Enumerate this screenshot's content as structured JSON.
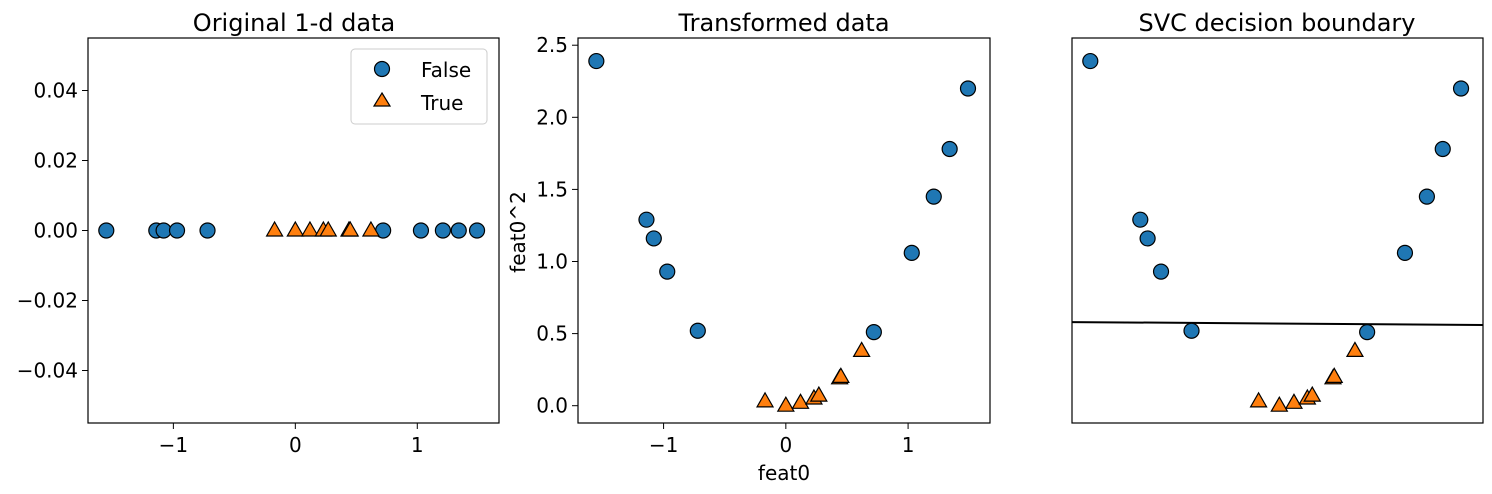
{
  "colors": {
    "false": "#1f77b4",
    "true": "#ff7f0e",
    "edge": "#000000",
    "line": "#000000"
  },
  "chart_data": [
    {
      "type": "scatter",
      "title": "Original 1-d data",
      "xlabel": "",
      "ylabel": "",
      "xlim": [
        -1.7,
        1.67
      ],
      "ylim": [
        -0.055,
        0.055
      ],
      "xticks": [
        -1,
        0,
        1
      ],
      "xtick_labels": [
        "−1",
        "0",
        "1"
      ],
      "yticks": [
        0.04,
        0.02,
        0.0,
        -0.02,
        -0.04
      ],
      "ytick_labels": [
        "0.04",
        "0.02",
        "0.00",
        "−0.02",
        "−0.04"
      ],
      "legend": {
        "position": "top-right",
        "entries": [
          {
            "label": "False",
            "marker": "circle"
          },
          {
            "label": "True",
            "marker": "triangle"
          }
        ]
      },
      "series": [
        {
          "name": "False",
          "marker": "circle",
          "x": [
            -1.55,
            -1.14,
            -1.08,
            -0.97,
            -0.72,
            0.72,
            1.03,
            1.21,
            1.34,
            1.49
          ],
          "y": [
            0,
            0,
            0,
            0,
            0,
            0,
            0,
            0,
            0,
            0
          ]
        },
        {
          "name": "True",
          "marker": "triangle",
          "x": [
            -0.17,
            0.0,
            0.12,
            0.23,
            0.27,
            0.44,
            0.45,
            0.62
          ],
          "y": [
            0,
            0,
            0,
            0,
            0,
            0,
            0,
            0
          ]
        }
      ]
    },
    {
      "type": "scatter",
      "title": "Transformed data",
      "xlabel": "feat0",
      "ylabel": "feat0^2",
      "xlim": [
        -1.7,
        1.67
      ],
      "ylim": [
        -0.12,
        2.55
      ],
      "xticks": [
        -1,
        0,
        1
      ],
      "xtick_labels": [
        "−1",
        "0",
        "1"
      ],
      "yticks": [
        0.0,
        0.5,
        1.0,
        1.5,
        2.0,
        2.5
      ],
      "ytick_labels": [
        "0.0",
        "0.5",
        "1.0",
        "1.5",
        "2.0",
        "2.5"
      ],
      "series": [
        {
          "marker": "circle",
          "x": [
            -1.55,
            -1.14,
            -1.08,
            -0.97,
            -0.72,
            0.72,
            1.03,
            1.21,
            1.34,
            1.49
          ],
          "y": [
            2.39,
            1.29,
            1.16,
            0.93,
            0.52,
            0.51,
            1.06,
            1.45,
            1.78,
            2.2
          ]
        },
        {
          "marker": "triangle",
          "x": [
            -0.17,
            0.0,
            0.12,
            0.23,
            0.27,
            0.44,
            0.45,
            0.62
          ],
          "y": [
            0.03,
            0.0,
            0.02,
            0.05,
            0.07,
            0.19,
            0.2,
            0.38
          ]
        }
      ]
    },
    {
      "type": "scatter",
      "title": "SVC decision boundary",
      "xlabel": "",
      "ylabel": "",
      "ticks_hidden": true,
      "xlim": [
        -1.7,
        1.67
      ],
      "ylim": [
        -0.12,
        2.55
      ],
      "decision_boundary": {
        "x": [
          -1.7,
          1.67
        ],
        "y": [
          0.58,
          0.56
        ]
      },
      "series": [
        {
          "marker": "circle",
          "x": [
            -1.55,
            -1.14,
            -1.08,
            -0.97,
            -0.72,
            0.72,
            1.03,
            1.21,
            1.34,
            1.49
          ],
          "y": [
            2.39,
            1.29,
            1.16,
            0.93,
            0.52,
            0.51,
            1.06,
            1.45,
            1.78,
            2.2
          ]
        },
        {
          "marker": "triangle",
          "x": [
            -0.17,
            0.0,
            0.12,
            0.23,
            0.27,
            0.44,
            0.45,
            0.62
          ],
          "y": [
            0.03,
            0.0,
            0.02,
            0.05,
            0.07,
            0.19,
            0.2,
            0.38
          ]
        }
      ]
    }
  ]
}
